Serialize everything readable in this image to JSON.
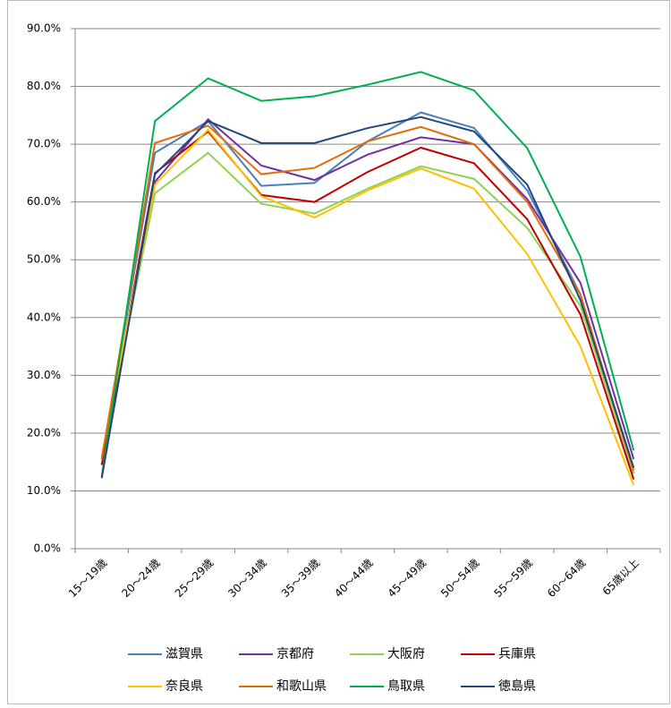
{
  "chart_data": {
    "type": "line",
    "categories": [
      "15～19歳",
      "20～24歳",
      "25～29歳",
      "30～34歳",
      "35～39歳",
      "40～44歳",
      "45～49歳",
      "50～54歳",
      "55～59歳",
      "60～64歳",
      "65歳以上"
    ],
    "ylim": [
      0,
      90
    ],
    "yticks": [
      {
        "value": 0,
        "label": "0.0%"
      },
      {
        "value": 10,
        "label": "10.0%"
      },
      {
        "value": 20,
        "label": "20.0%"
      },
      {
        "value": 30,
        "label": "30.0%"
      },
      {
        "value": 40,
        "label": "40.0%"
      },
      {
        "value": 50,
        "label": "50.0%"
      },
      {
        "value": 60,
        "label": "60.0%"
      },
      {
        "value": 70,
        "label": "70.0%"
      },
      {
        "value": 80,
        "label": "80.0%"
      },
      {
        "value": 90,
        "label": "90.0%"
      }
    ],
    "grid": true,
    "legend": "bottom",
    "series": [
      {
        "name": "滋賀県",
        "color": "#4a7ebb",
        "values": [
          15.5,
          68.5,
          74,
          62.8,
          63.3,
          70.5,
          75.5,
          72.8,
          62,
          44,
          13
        ]
      },
      {
        "name": "京都府",
        "color": "#7030a0",
        "values": [
          14.5,
          63.5,
          74.3,
          66.3,
          63.8,
          68.2,
          71.2,
          70,
          60.5,
          46,
          15.5
        ]
      },
      {
        "name": "大阪府",
        "color": "#92d050",
        "values": [
          16,
          61.5,
          68.5,
          59.7,
          58,
          62.3,
          66.2,
          64,
          55.5,
          42,
          13
        ]
      },
      {
        "name": "兵庫県",
        "color": "#c00000",
        "values": [
          14.5,
          65,
          72.2,
          61.2,
          60,
          65.2,
          69.4,
          66.7,
          57,
          40.5,
          12
        ]
      },
      {
        "name": "奈良県",
        "color": "#ffc000",
        "values": [
          16,
          63,
          72.5,
          61,
          57.3,
          62,
          65.8,
          62.3,
          51,
          35,
          11
        ]
      },
      {
        "name": "和歌山県",
        "color": "#e36c09",
        "values": [
          15.5,
          70.2,
          73.2,
          64.8,
          65.9,
          70.5,
          73,
          70,
          60,
          44,
          13.5
        ]
      },
      {
        "name": "鳥取県",
        "color": "#00b050",
        "values": [
          12.5,
          74,
          81.4,
          77.5,
          78.3,
          80.3,
          82.5,
          79.3,
          69.3,
          50.5,
          17
        ]
      },
      {
        "name": "徳島県",
        "color": "#1f497d",
        "values": [
          12.2,
          64.8,
          74,
          70.2,
          70.2,
          72.8,
          74.7,
          72.2,
          63,
          43,
          14
        ]
      }
    ]
  }
}
